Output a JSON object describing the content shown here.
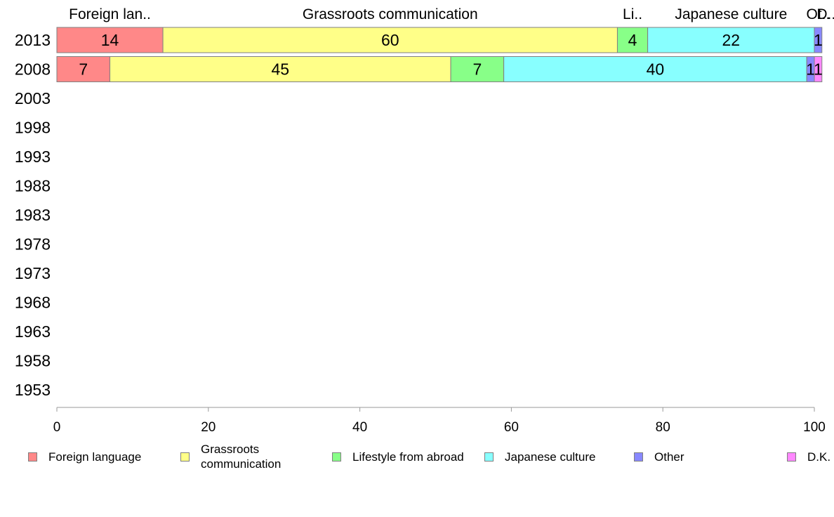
{
  "chart_data": {
    "type": "bar",
    "orientation": "horizontal",
    "stacked": true,
    "categories": [
      "2013",
      "2008",
      "2003",
      "1998",
      "1993",
      "1988",
      "1983",
      "1978",
      "1973",
      "1968",
      "1963",
      "1958",
      "1953"
    ],
    "series": [
      {
        "name": "Foreign language",
        "color": "#ff8888",
        "values": [
          14,
          7,
          null,
          null,
          null,
          null,
          null,
          null,
          null,
          null,
          null,
          null,
          null
        ]
      },
      {
        "name": "Grassroots communication",
        "color": "#ffff88",
        "values": [
          60,
          45,
          null,
          null,
          null,
          null,
          null,
          null,
          null,
          null,
          null,
          null,
          null
        ]
      },
      {
        "name": "Lifestyle from abroad",
        "color": "#88ff88",
        "values": [
          4,
          7,
          null,
          null,
          null,
          null,
          null,
          null,
          null,
          null,
          null,
          null,
          null
        ]
      },
      {
        "name": "Japanese culture",
        "color": "#88ffff",
        "values": [
          22,
          40,
          null,
          null,
          null,
          null,
          null,
          null,
          null,
          null,
          null,
          null,
          null
        ]
      },
      {
        "name": "Other",
        "color": "#8888ff",
        "values": [
          1,
          1,
          null,
          null,
          null,
          null,
          null,
          null,
          null,
          null,
          null,
          null,
          null
        ]
      },
      {
        "name": "D.K.",
        "color": "#ff88ff",
        "values": [
          0,
          1,
          null,
          null,
          null,
          null,
          null,
          null,
          null,
          null,
          null,
          null,
          null
        ]
      }
    ],
    "top_labels": [
      "Foreign lan..",
      "Grassroots communication",
      "Li..",
      "Japanese culture",
      "Ot..",
      "D.."
    ],
    "xlim": [
      0,
      100
    ],
    "xticks": [
      "0",
      "20",
      "40",
      "60",
      "80",
      "100"
    ],
    "xlabel": "",
    "ylabel": "",
    "grid": false,
    "legend_position": "bottom"
  }
}
